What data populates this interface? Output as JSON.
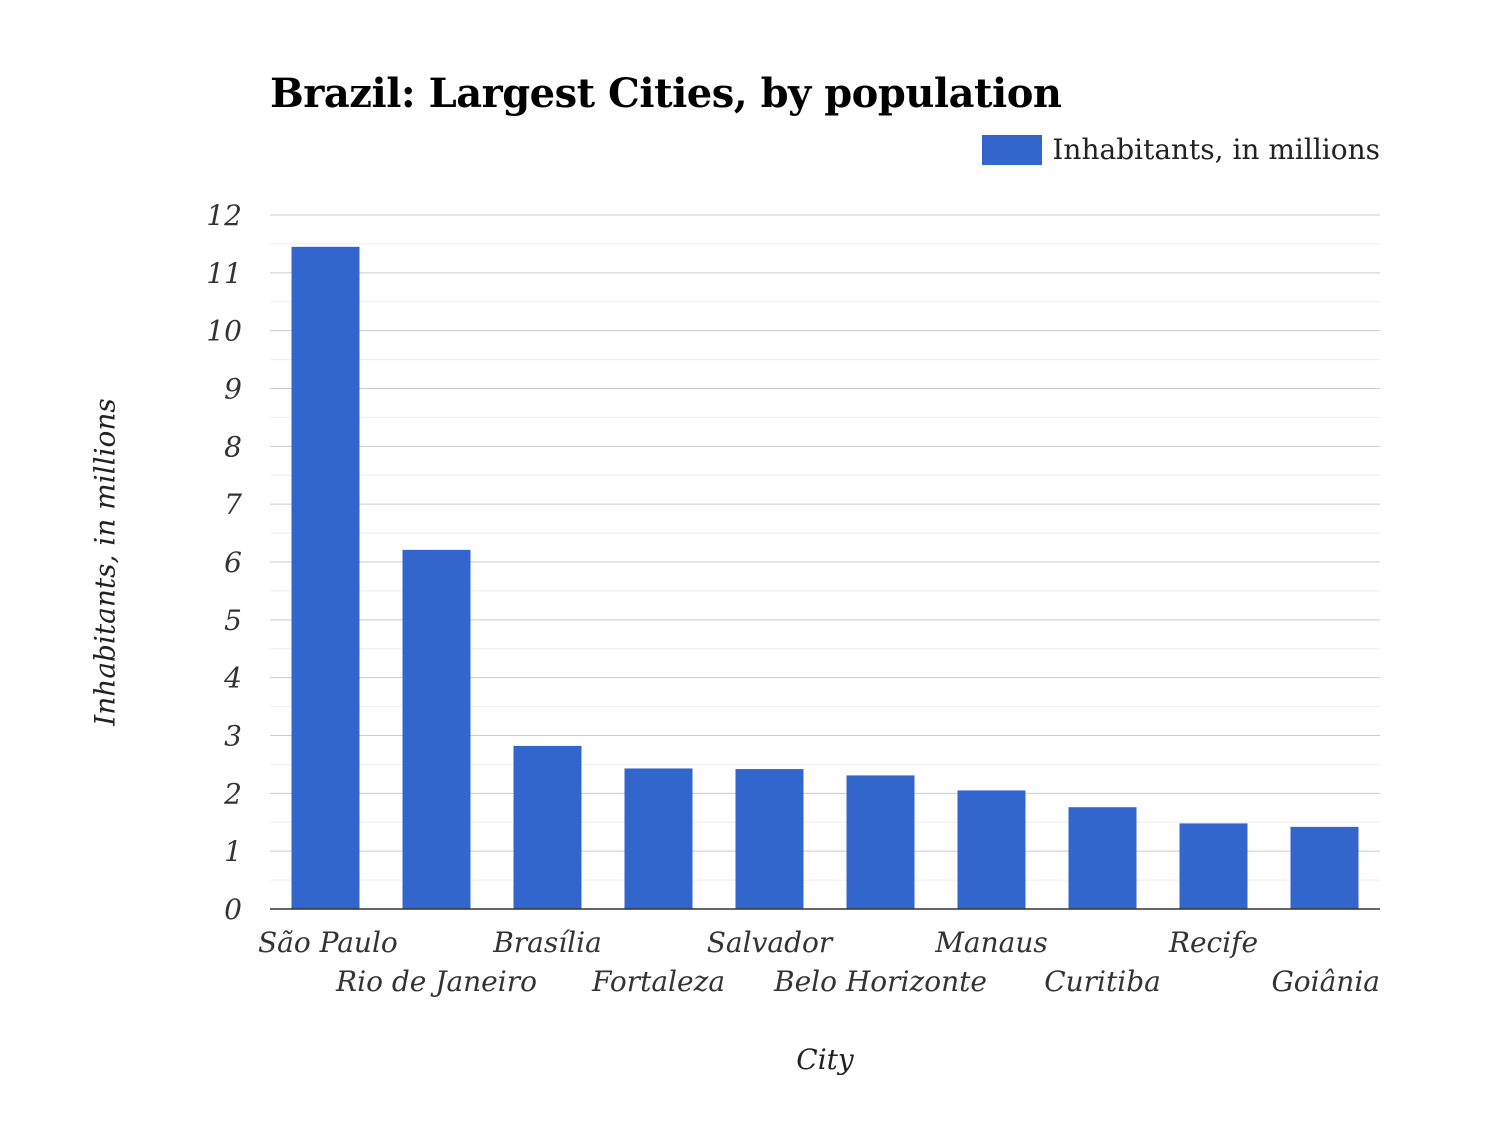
{
  "chart_data": {
    "type": "bar",
    "title": "Brazil: Largest Cities, by population",
    "xlabel": "City",
    "ylabel": "Inhabitants, in millions",
    "categories": [
      "São Paulo",
      "Rio de Janeiro",
      "Brasília",
      "Fortaleza",
      "Salvador",
      "Belo Horizonte",
      "Manaus",
      "Curitiba",
      "Recife",
      "Goiânia"
    ],
    "series": [
      {
        "name": "Inhabitants, in millions",
        "values": [
          11.45,
          6.21,
          2.82,
          2.43,
          2.42,
          2.31,
          2.05,
          1.76,
          1.48,
          1.42
        ]
      }
    ],
    "ylim": [
      0,
      12
    ],
    "yticks": [
      0,
      1,
      2,
      3,
      4,
      5,
      6,
      7,
      8,
      9,
      10,
      11,
      12
    ],
    "grid": true,
    "legend_position": "top-right",
    "bar_color": "#3366cc"
  }
}
